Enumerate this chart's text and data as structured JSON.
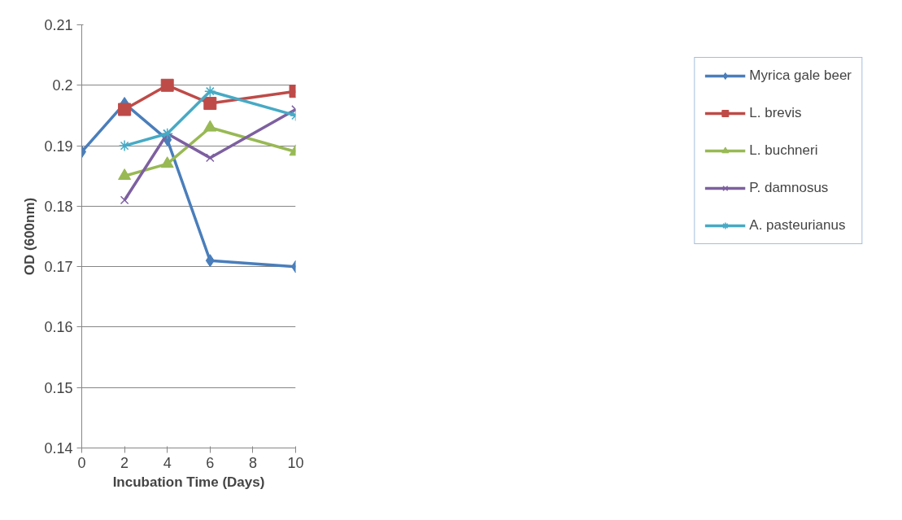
{
  "chart_data": {
    "type": "line",
    "xlabel": "Incubation Time (Days)",
    "ylabel": "OD (600nm)",
    "xlim": [
      0,
      10
    ],
    "xticks": [
      0,
      2,
      4,
      6,
      8,
      10
    ],
    "ylim": [
      0.14,
      0.21
    ],
    "yticks": [
      0.14,
      0.15,
      0.16,
      0.17,
      0.18,
      0.19,
      0.2,
      0.21
    ],
    "grid": "y",
    "legend": "right",
    "line_style": "solid",
    "series": [
      {
        "name": "Myrica gale beer",
        "color": "#4a7ebb",
        "marker": "diamond",
        "x": [
          0,
          2,
          4,
          6,
          10
        ],
        "values": [
          0.189,
          0.197,
          0.191,
          0.171,
          0.17
        ]
      },
      {
        "name": "L. brevis",
        "color": "#be4b48",
        "marker": "square",
        "x": [
          2,
          4,
          6,
          10
        ],
        "values": [
          0.196,
          0.2,
          0.197,
          0.199
        ]
      },
      {
        "name": "L. buchneri",
        "color": "#98b954",
        "marker": "triangle",
        "x": [
          2,
          4,
          6,
          10
        ],
        "values": [
          0.185,
          0.187,
          0.193,
          0.189
        ]
      },
      {
        "name": "P. damnosus",
        "color": "#7d60a0",
        "marker": "cross",
        "x": [
          2,
          4,
          6,
          10
        ],
        "values": [
          0.181,
          0.192,
          0.188,
          0.196
        ]
      },
      {
        "name": "A. pasteurianus",
        "color": "#46aac5",
        "marker": "cross",
        "x": [
          2,
          4,
          6,
          10
        ],
        "values": [
          0.19,
          0.192,
          0.199,
          0.195
        ]
      }
    ]
  }
}
